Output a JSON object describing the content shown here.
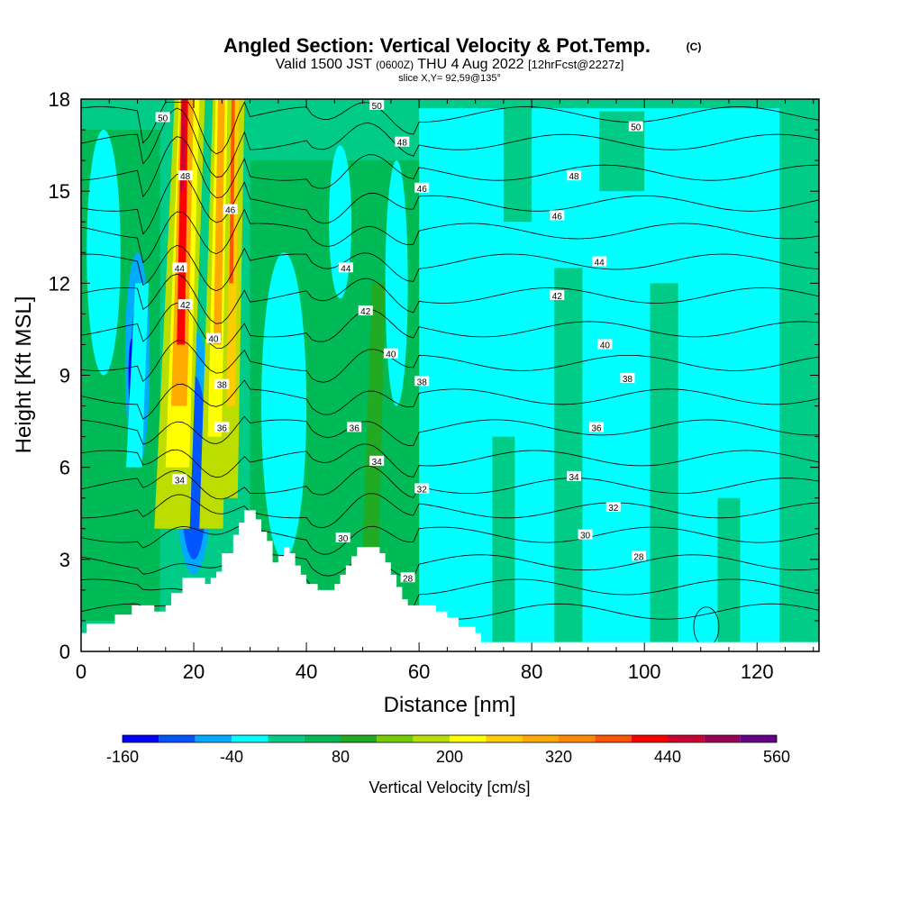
{
  "chart_data": {
    "type": "heatmap",
    "title": "Angled Section: Vertical Velocity & Pot.Temp.",
    "title_unit": "(C)",
    "subtitle_a": "Valid 1500 JST",
    "subtitle_b": "(0600Z)",
    "subtitle_c": "THU 4 Aug 2022",
    "subtitle_d": "[12hrFcst@2227z]",
    "slice_label": "slice X,Y= 92,59@135°",
    "xlabel": "Distance [nm]",
    "ylabel": "Height [Kft MSL]",
    "xlim": [
      0,
      131
    ],
    "ylim": [
      0,
      18
    ],
    "x_ticks": [
      0,
      20,
      40,
      60,
      80,
      100,
      120
    ],
    "y_ticks": [
      0,
      3,
      6,
      9,
      12,
      15,
      18
    ],
    "colorbar": {
      "title": "Vertical Velocity [cm/s]",
      "tick_labels": [
        "-160",
        "-40",
        "80",
        "200",
        "320",
        "440",
        "560"
      ],
      "bin_edges": [
        -160,
        -120,
        -80,
        -40,
        0,
        40,
        80,
        120,
        160,
        200,
        240,
        280,
        320,
        360,
        400,
        440,
        480,
        520,
        560
      ],
      "colors": [
        "#0000ff",
        "#0055ff",
        "#00aaff",
        "#00ffff",
        "#00cc88",
        "#00bb55",
        "#22aa22",
        "#77cc00",
        "#bbdd00",
        "#ffff00",
        "#ffcc00",
        "#ffaa00",
        "#ff8800",
        "#ff5500",
        "#ff0000",
        "#cc0033",
        "#990055",
        "#660088"
      ]
    },
    "contour_lines_theta_C": [
      28,
      30,
      32,
      34,
      36,
      38,
      40,
      42,
      44,
      46,
      48,
      50
    ],
    "contour_labels": [
      {
        "text": "50",
        "x": 14.5,
        "y": 17.4
      },
      {
        "text": "50",
        "x": 52.5,
        "y": 17.8
      },
      {
        "text": "50",
        "x": 98.5,
        "y": 17.1
      },
      {
        "text": "48",
        "x": 18.5,
        "y": 15.5
      },
      {
        "text": "48",
        "x": 57,
        "y": 16.6
      },
      {
        "text": "48",
        "x": 87.5,
        "y": 15.5
      },
      {
        "text": "46",
        "x": 26.5,
        "y": 14.4
      },
      {
        "text": "46",
        "x": 60.5,
        "y": 15.1
      },
      {
        "text": "46",
        "x": 84.5,
        "y": 14.2
      },
      {
        "text": "44",
        "x": 17.5,
        "y": 12.5
      },
      {
        "text": "44",
        "x": 47,
        "y": 12.5
      },
      {
        "text": "44",
        "x": 92,
        "y": 12.7
      },
      {
        "text": "42",
        "x": 18.5,
        "y": 11.3
      },
      {
        "text": "42",
        "x": 50.5,
        "y": 11.1
      },
      {
        "text": "42",
        "x": 84.5,
        "y": 11.6
      },
      {
        "text": "40",
        "x": 23.5,
        "y": 10.2
      },
      {
        "text": "40",
        "x": 55,
        "y": 9.7
      },
      {
        "text": "40",
        "x": 93,
        "y": 10.0
      },
      {
        "text": "38",
        "x": 25,
        "y": 8.7
      },
      {
        "text": "38",
        "x": 60.5,
        "y": 8.8
      },
      {
        "text": "38",
        "x": 97,
        "y": 8.9
      },
      {
        "text": "36",
        "x": 25,
        "y": 7.3
      },
      {
        "text": "36",
        "x": 48.5,
        "y": 7.3
      },
      {
        "text": "36",
        "x": 91.5,
        "y": 7.3
      },
      {
        "text": "34",
        "x": 17.5,
        "y": 5.6
      },
      {
        "text": "34",
        "x": 52.5,
        "y": 6.2
      },
      {
        "text": "34",
        "x": 87.5,
        "y": 5.7
      },
      {
        "text": "32",
        "x": 60.5,
        "y": 5.3
      },
      {
        "text": "32",
        "x": 94.5,
        "y": 4.7
      },
      {
        "text": "30",
        "x": 46.5,
        "y": 3.7
      },
      {
        "text": "30",
        "x": 89.5,
        "y": 3.8
      },
      {
        "text": "28",
        "x": 58,
        "y": 2.4
      },
      {
        "text": "28",
        "x": 99,
        "y": 3.1
      }
    ],
    "terrain_height_kft": [
      [
        0,
        0.6
      ],
      [
        1,
        0.9
      ],
      [
        6,
        1.2
      ],
      [
        9,
        1.5
      ],
      [
        13,
        1.3
      ],
      [
        15,
        1.5
      ],
      [
        16,
        1.9
      ],
      [
        18,
        2.4
      ],
      [
        22,
        2.2
      ],
      [
        23,
        2.4
      ],
      [
        24,
        2.6
      ],
      [
        25,
        3.2
      ],
      [
        27,
        3.8
      ],
      [
        28,
        4.2
      ],
      [
        29,
        4.6
      ],
      [
        31,
        4.3
      ],
      [
        32,
        3.9
      ],
      [
        33,
        3.6
      ],
      [
        34,
        2.9
      ],
      [
        35,
        3.1
      ],
      [
        36,
        3.4
      ],
      [
        37,
        3.2
      ],
      [
        38,
        2.8
      ],
      [
        39,
        2.5
      ],
      [
        40,
        2.2
      ],
      [
        42,
        2.0
      ],
      [
        45,
        2.2
      ],
      [
        46,
        2.5
      ],
      [
        47,
        2.8
      ],
      [
        48,
        3.1
      ],
      [
        49,
        3.4
      ],
      [
        53,
        3.2
      ],
      [
        54,
        2.9
      ],
      [
        55,
        2.5
      ],
      [
        56,
        2.1
      ],
      [
        57,
        1.7
      ],
      [
        58,
        1.5
      ],
      [
        63,
        1.3
      ],
      [
        65,
        1.1
      ],
      [
        67,
        0.8
      ],
      [
        70,
        0.6
      ],
      [
        71,
        0.3
      ],
      [
        131,
        0.3
      ]
    ]
  }
}
